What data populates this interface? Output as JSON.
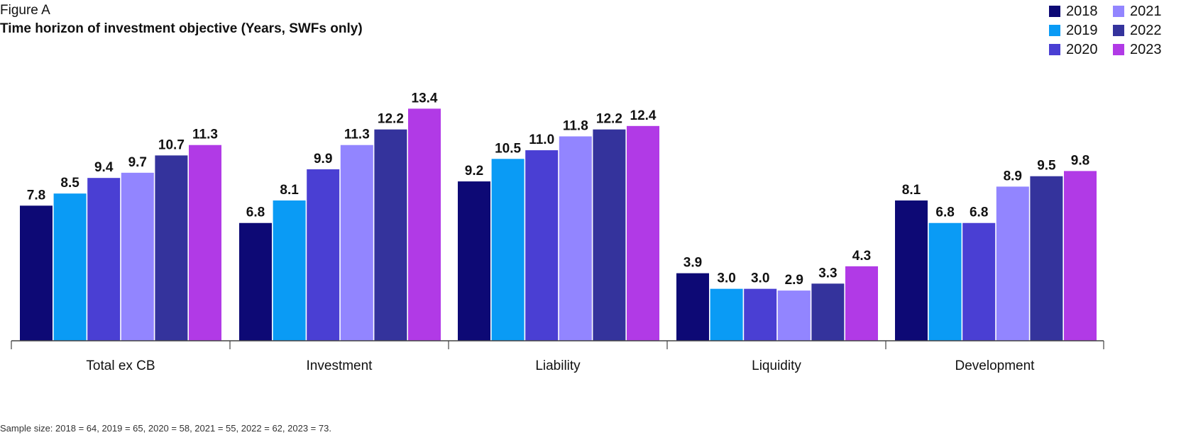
{
  "figure_label": "Figure A",
  "title": "Time horizon of investment objective (Years, SWFs only)",
  "footnote": "Sample size: 2018 = 64, 2019 = 65, 2020 = 58, 2021 = 55, 2022 = 62, 2023 = 73.",
  "legend": [
    {
      "name": "2018",
      "color": "#0d0975"
    },
    {
      "name": "2021",
      "color": "#9285ff"
    },
    {
      "name": "2019",
      "color": "#0a9bf5"
    },
    {
      "name": "2022",
      "color": "#34339c"
    },
    {
      "name": "2020",
      "color": "#4a3fd3"
    },
    {
      "name": "2023",
      "color": "#b13ae6"
    }
  ],
  "chart_data": {
    "type": "bar",
    "title": "Time horizon of investment objective (Years, SWFs only)",
    "xlabel": "",
    "ylabel": "",
    "ylim": [
      0,
      14.9
    ],
    "grid": false,
    "legend_position": "top-right",
    "categories": [
      "Total ex CB",
      "Investment",
      "Liability",
      "Liquidity",
      "Development"
    ],
    "series": [
      {
        "name": "2018",
        "color": "#0d0975",
        "values": [
          7.8,
          6.8,
          9.2,
          3.9,
          8.1
        ],
        "labels": [
          "7.8",
          "6.8",
          "9.2",
          "3.9",
          "8.1"
        ]
      },
      {
        "name": "2019",
        "color": "#0a9bf5",
        "values": [
          8.5,
          8.1,
          10.5,
          3.0,
          6.8
        ],
        "labels": [
          "8.5",
          "8.1",
          "10.5",
          "3.0",
          "6.8"
        ]
      },
      {
        "name": "2020",
        "color": "#4a3fd3",
        "values": [
          9.4,
          9.9,
          11.0,
          3.0,
          6.8
        ],
        "labels": [
          "9.4",
          "9.9",
          "11.0",
          "3.0",
          "6.8"
        ]
      },
      {
        "name": "2021",
        "color": "#9285ff",
        "values": [
          9.7,
          11.3,
          11.8,
          2.9,
          8.9
        ],
        "labels": [
          "9.7",
          "11.3",
          "11.8",
          "2.9",
          "8.9"
        ]
      },
      {
        "name": "2022",
        "color": "#34339c",
        "values": [
          10.7,
          12.2,
          12.2,
          3.3,
          9.5
        ],
        "labels": [
          "10.7",
          "12.2",
          "12.2",
          "3.3",
          "9.5"
        ]
      },
      {
        "name": "2023",
        "color": "#b13ae6",
        "values": [
          11.3,
          13.4,
          12.4,
          4.3,
          9.8
        ],
        "labels": [
          "11.3",
          "13.4",
          "12.4",
          "4.3",
          "9.8"
        ]
      }
    ]
  }
}
